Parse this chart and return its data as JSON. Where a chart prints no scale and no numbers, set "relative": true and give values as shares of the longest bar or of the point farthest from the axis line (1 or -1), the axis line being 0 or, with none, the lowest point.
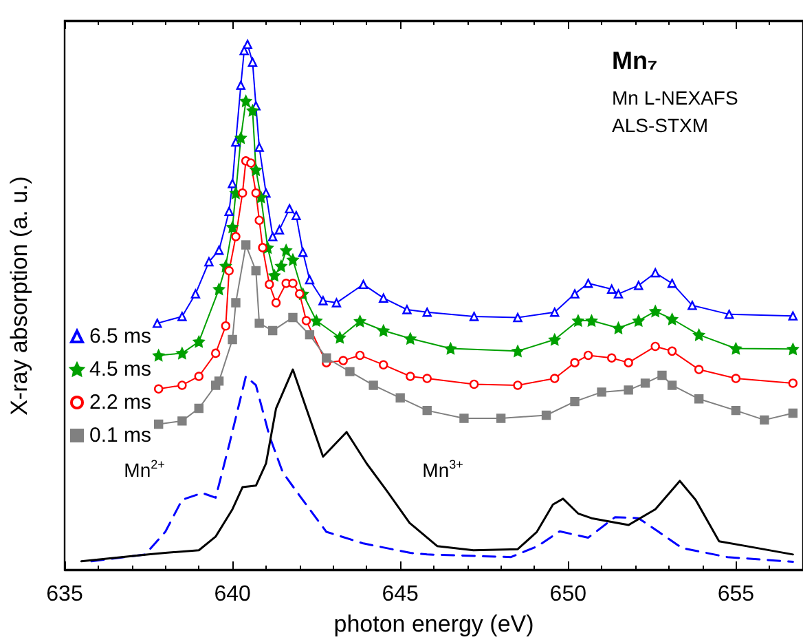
{
  "chart_data": {
    "type": "line",
    "title": "Mn₇",
    "subtitle": "Mn L-NEXAFS\nALS-STXM",
    "xlabel": "photon energy (eV)",
    "ylabel": "X-ray absorption (a. u.)",
    "relative": true,
    "xlim": [
      635,
      657
    ],
    "xticks": [
      635,
      640,
      645,
      650,
      655
    ],
    "grid": false,
    "legend": "left",
    "series": [
      {
        "name": "6.5 ms",
        "color": "#0000ff",
        "marker": "triangle",
        "x": [
          637.76,
          638.5,
          638.9,
          639.3,
          639.6,
          639.9,
          640.0,
          640.1,
          640.25,
          640.35,
          640.45,
          640.6,
          640.7,
          640.8,
          641.0,
          641.2,
          641.4,
          641.7,
          641.9,
          642.1,
          642.3,
          642.7,
          643.1,
          643.9,
          644.5,
          645.2,
          645.8,
          647.2,
          648.5,
          649.6,
          650.2,
          650.6,
          651.3,
          651.5,
          652.1,
          652.6,
          653.1,
          653.7,
          654.8,
          656.7
        ],
        "values": [
          0.469,
          0.482,
          0.525,
          0.586,
          0.608,
          0.682,
          0.735,
          0.814,
          0.922,
          0.988,
          1.0,
          0.966,
          0.883,
          0.804,
          0.717,
          0.634,
          0.647,
          0.687,
          0.674,
          0.604,
          0.552,
          0.512,
          0.508,
          0.543,
          0.517,
          0.495,
          0.49,
          0.482,
          0.48,
          0.49,
          0.525,
          0.545,
          0.534,
          0.525,
          0.541,
          0.565,
          0.545,
          0.503,
          0.486,
          0.483
        ]
      },
      {
        "name": "4.5 ms",
        "color": "#00a000",
        "marker": "star",
        "x": [
          637.8,
          638.5,
          639.0,
          639.6,
          639.8,
          640.0,
          640.1,
          640.25,
          640.4,
          640.6,
          640.7,
          640.85,
          641.05,
          641.25,
          641.45,
          641.6,
          641.8,
          642.1,
          642.5,
          643.2,
          643.8,
          644.5,
          645.3,
          646.5,
          648.5,
          649.6,
          650.3,
          650.7,
          651.5,
          652.1,
          652.6,
          653.1,
          653.9,
          655.0,
          656.7
        ],
        "values": [
          0.408,
          0.412,
          0.434,
          0.534,
          0.578,
          0.652,
          0.717,
          0.822,
          0.892,
          0.874,
          0.761,
          0.709,
          0.613,
          0.56,
          0.578,
          0.608,
          0.59,
          0.525,
          0.474,
          0.442,
          0.473,
          0.455,
          0.44,
          0.421,
          0.416,
          0.438,
          0.474,
          0.474,
          0.46,
          0.474,
          0.492,
          0.477,
          0.447,
          0.421,
          0.42
        ]
      },
      {
        "name": "2.2 ms",
        "color": "#ff0000",
        "marker": "circle",
        "x": [
          637.8,
          638.5,
          639.0,
          639.5,
          639.8,
          639.9,
          640.1,
          640.3,
          640.4,
          640.55,
          640.7,
          640.8,
          640.9,
          641.1,
          641.3,
          641.6,
          641.8,
          642.0,
          642.2,
          642.8,
          643.3,
          643.8,
          644.5,
          645.3,
          645.8,
          647.2,
          648.5,
          649.6,
          650.2,
          650.6,
          651.3,
          651.8,
          652.6,
          653.1,
          653.9,
          655.0,
          656.7
        ],
        "values": [
          0.344,
          0.351,
          0.368,
          0.412,
          0.464,
          0.569,
          0.634,
          0.717,
          0.778,
          0.774,
          0.717,
          0.665,
          0.613,
          0.543,
          0.508,
          0.545,
          0.545,
          0.525,
          0.474,
          0.394,
          0.398,
          0.408,
          0.39,
          0.368,
          0.364,
          0.353,
          0.351,
          0.364,
          0.394,
          0.408,
          0.403,
          0.394,
          0.425,
          0.416,
          0.381,
          0.364,
          0.355
        ]
      },
      {
        "name": "0.1 ms",
        "color": "#808080",
        "marker": "square",
        "x": [
          637.8,
          638.5,
          639.0,
          639.5,
          639.6,
          640.0,
          640.1,
          640.4,
          640.7,
          640.8,
          641.2,
          641.8,
          642.3,
          642.8,
          643.5,
          644.2,
          645.0,
          645.8,
          646.9,
          648.0,
          649.35,
          650.2,
          651.0,
          651.8,
          652.3,
          652.8,
          653.1,
          653.9,
          655.0,
          655.85,
          656.7
        ],
        "values": [
          0.277,
          0.283,
          0.307,
          0.351,
          0.359,
          0.438,
          0.508,
          0.618,
          0.569,
          0.469,
          0.455,
          0.48,
          0.447,
          0.403,
          0.377,
          0.351,
          0.327,
          0.303,
          0.288,
          0.288,
          0.294,
          0.32,
          0.338,
          0.342,
          0.355,
          0.37,
          0.351,
          0.325,
          0.303,
          0.285,
          0.298
        ]
      },
      {
        "color": "#0000ff",
        "marker": "none",
        "line_style": "dashed",
        "x": [
          635.8,
          637.4,
          638.0,
          638.5,
          639.1,
          639.5,
          639.9,
          640.4,
          640.7,
          641.1,
          641.5,
          642.0,
          642.8,
          643.9,
          645.3,
          645.8,
          648.3,
          649.1,
          649.75,
          650.6,
          651.4,
          652.1,
          652.7,
          653.4,
          654.75,
          656.7
        ],
        "values": [
          0.016,
          0.029,
          0.072,
          0.133,
          0.146,
          0.137,
          0.237,
          0.368,
          0.351,
          0.255,
          0.185,
          0.141,
          0.072,
          0.05,
          0.032,
          0.029,
          0.024,
          0.045,
          0.073,
          0.061,
          0.1,
          0.098,
          0.072,
          0.041,
          0.024,
          0.015
        ]
      },
      {
        "color": "#000000",
        "marker": "none",
        "line_style": "solid",
        "x": [
          635.5,
          637.5,
          638.0,
          639.0,
          639.5,
          640.0,
          640.3,
          640.7,
          641.0,
          641.3,
          641.8,
          642.2,
          642.7,
          643.4,
          644.0,
          644.6,
          645.28,
          646.1,
          647.18,
          648.5,
          649.07,
          649.55,
          649.85,
          650.3,
          650.7,
          651.8,
          652.6,
          653.33,
          653.8,
          654.5,
          655.3,
          656.7
        ],
        "values": [
          0.016,
          0.029,
          0.032,
          0.037,
          0.063,
          0.115,
          0.157,
          0.16,
          0.202,
          0.307,
          0.381,
          0.307,
          0.215,
          0.262,
          0.202,
          0.15,
          0.089,
          0.045,
          0.037,
          0.039,
          0.072,
          0.124,
          0.135,
          0.107,
          0.098,
          0.085,
          0.115,
          0.169,
          0.133,
          0.054,
          0.045,
          0.029
        ]
      }
    ],
    "annotations": [
      "Mn$^{2+}$",
      "Mn$^{3+}$"
    ]
  }
}
